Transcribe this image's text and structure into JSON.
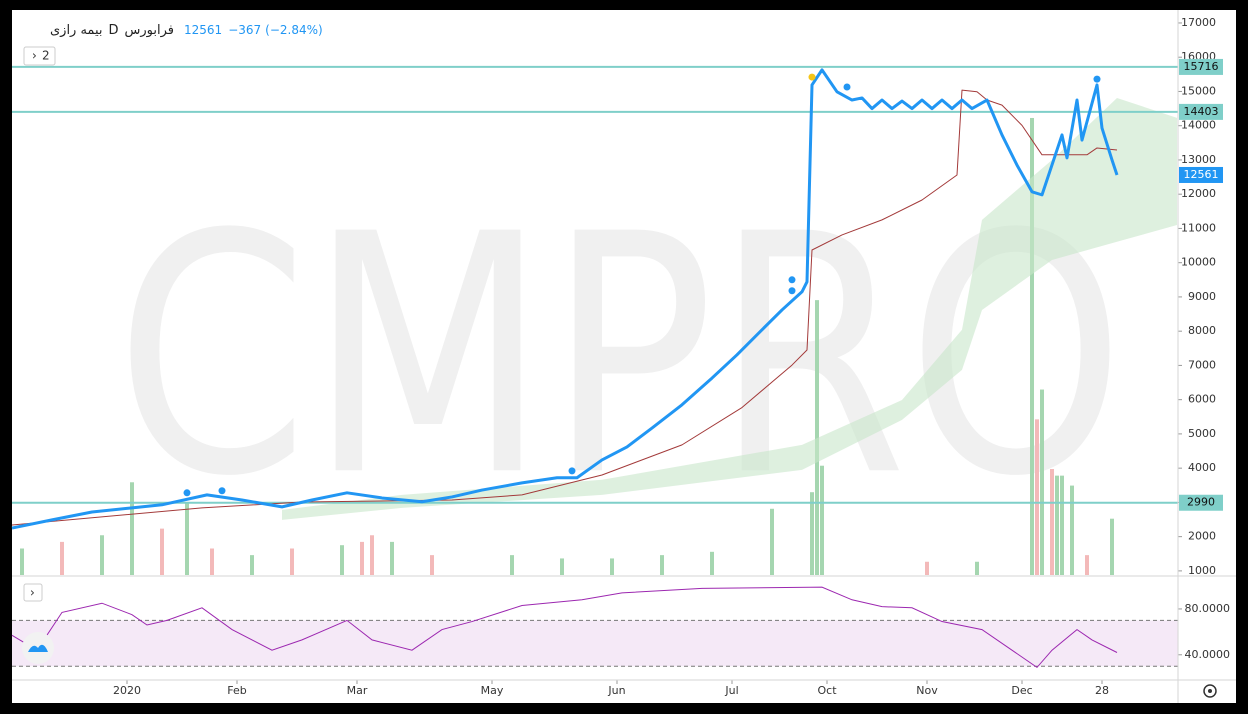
{
  "chart_data": {
    "type": "line",
    "header": {
      "symbol": "بیمه رازی",
      "interval": "D",
      "exchange": "فرابورس",
      "change": "−367",
      "change_pct": "(−2.84%)",
      "indicator_count": "2"
    },
    "watermark": "CMPRO",
    "last": 12561,
    "xlim": [
      0,
      233.2
    ],
    "xticks": [
      {
        "value": 23,
        "label": "2020"
      },
      {
        "value": 45,
        "label": "Feb"
      },
      {
        "value": 69,
        "label": "Mar"
      },
      {
        "value": 96,
        "label": "May"
      },
      {
        "value": 121,
        "label": "Jun"
      },
      {
        "value": 144,
        "label": "Jul"
      },
      {
        "value": 163,
        "label": "Oct"
      },
      {
        "value": 183,
        "label": "Nov"
      },
      {
        "value": 202,
        "label": "Dec"
      },
      {
        "value": 218,
        "label": "28"
      }
    ],
    "ylim": [
      880,
      17320
    ],
    "yticks": [
      1000,
      2000,
      3000,
      4000,
      5000,
      6000,
      7000,
      8000,
      9000,
      10000,
      11000,
      12000,
      13000,
      14000,
      15000,
      16000,
      17000
    ],
    "levels": [
      {
        "value": 15716,
        "color": "#7fcfc9"
      },
      {
        "value": 14403,
        "color": "#7fcfc9"
      },
      {
        "value": 2990,
        "color": "#7fcfc9"
      }
    ],
    "series": [
      {
        "name": "price",
        "color": "#2196f3",
        "x": [
          0,
          8,
          16,
          24,
          30,
          39,
          46,
          54,
          60,
          67,
          74,
          82,
          88,
          94,
          102,
          109,
          113,
          118,
          123,
          128,
          134,
          140,
          145,
          150,
          154,
          158,
          159,
          160,
          162,
          165,
          168,
          170,
          172,
          174,
          176,
          178,
          180,
          182,
          184,
          186,
          188,
          190,
          192,
          195,
          198,
          201,
          204,
          206,
          210,
          211,
          213,
          214,
          217,
          218,
          220,
          221
        ],
        "values": [
          2250,
          2490,
          2720,
          2840,
          2930,
          3220,
          3070,
          2870,
          3070,
          3280,
          3130,
          3020,
          3160,
          3360,
          3570,
          3720,
          3720,
          4240,
          4620,
          5170,
          5850,
          6630,
          7310,
          8040,
          8620,
          9150,
          9440,
          15190,
          15630,
          14990,
          14750,
          14810,
          14500,
          14750,
          14500,
          14720,
          14500,
          14750,
          14500,
          14750,
          14500,
          14750,
          14500,
          14750,
          13730,
          12850,
          12070,
          11980,
          13730,
          13060,
          14750,
          13580,
          15190,
          13930,
          13000,
          12561
        ]
      },
      {
        "name": "ma",
        "color": "#a33a3a",
        "x": [
          0,
          38,
          58,
          88,
          102,
          118,
          134,
          146,
          156,
          159,
          160,
          166,
          174,
          182,
          189,
          190,
          193,
          195,
          198,
          202,
          206,
          215,
          217,
          221
        ],
        "values": [
          2340,
          2840,
          3010,
          3070,
          3220,
          3800,
          4680,
          5770,
          7010,
          7450,
          10370,
          10810,
          11250,
          11830,
          12560,
          15040,
          14990,
          14750,
          14600,
          14010,
          13150,
          13150,
          13350,
          13290
        ]
      }
    ],
    "cloud": {
      "color": "#c8e6c9",
      "x": [
        54,
        78,
        118,
        158,
        178,
        190,
        194,
        208,
        221,
        233
      ],
      "upper": [
        2780,
        3220,
        3660,
        4680,
        5990,
        8040,
        11250,
        13000,
        14810,
        14230
      ],
      "lower": [
        2490,
        2840,
        3220,
        3950,
        5410,
        6870,
        8620,
        10080,
        10610,
        11100
      ]
    },
    "markers": {
      "x": [
        35,
        42,
        112,
        156,
        156,
        167,
        217,
        160
      ],
      "values": [
        3280,
        3340,
        3920,
        9500,
        9180,
        15130,
        15360,
        15420
      ],
      "colors": [
        "#2196f3",
        "#2196f3",
        "#2196f3",
        "#2196f3",
        "#2196f3",
        "#2196f3",
        "#2196f3",
        "#f5c518"
      ]
    },
    "volume": {
      "vlim": [
        0,
        170
      ],
      "x": [
        2,
        10,
        18,
        24,
        30,
        35,
        40,
        48,
        56,
        66,
        70,
        72,
        76,
        84,
        100,
        110,
        120,
        130,
        140,
        152,
        160,
        161,
        162,
        183,
        193,
        204,
        205,
        206,
        208,
        209,
        210,
        212,
        215,
        220
      ],
      "values": [
        8,
        10,
        12,
        28,
        14,
        22,
        8,
        6,
        8,
        9,
        10,
        12,
        10,
        6,
        6,
        5,
        5,
        6,
        7,
        20,
        25,
        83,
        33,
        4,
        4,
        138,
        47,
        56,
        32,
        30,
        30,
        27,
        6,
        17
      ],
      "colors": [
        "#a5d6b0",
        "#f3b9b9",
        "#a5d6b0",
        "#a5d6b0",
        "#f3b9b9",
        "#a5d6b0",
        "#f3b9b9",
        "#a5d6b0",
        "#f3b9b9",
        "#a5d6b0",
        "#f3b9b9",
        "#f3b9b9",
        "#a5d6b0",
        "#f3b9b9",
        "#a5d6b0",
        "#a5d6b0",
        "#a5d6b0",
        "#a5d6b0",
        "#a5d6b0",
        "#a5d6b0",
        "#a5d6b0",
        "#a5d6b0",
        "#a5d6b0",
        "#f3b9b9",
        "#a5d6b0",
        "#a5d6b0",
        "#f3b9b9",
        "#a5d6b0",
        "#f3b9b9",
        "#a5d6b0",
        "#a5d6b0",
        "#a5d6b0",
        "#f3b9b9",
        "#a5d6b0"
      ]
    },
    "rsi": {
      "color": "#9c27b0",
      "ylim": [
        18,
        107
      ],
      "yticks": [
        {
          "value": 80,
          "label": "80.0000"
        },
        {
          "value": 40,
          "label": "40.0000"
        }
      ],
      "band": [
        30,
        70
      ],
      "x": [
        0,
        5,
        10,
        18,
        24,
        27,
        31,
        38,
        44,
        52,
        58,
        67,
        72,
        80,
        86,
        92,
        102,
        114,
        122,
        138,
        162,
        168,
        174,
        180,
        186,
        194,
        200,
        205,
        208,
        213,
        216,
        221
      ],
      "values": [
        57,
        44,
        77,
        85,
        75,
        66,
        70,
        81,
        62,
        44,
        53,
        70,
        53,
        44,
        62,
        69,
        83,
        88,
        94,
        98,
        99,
        88,
        82,
        81,
        69,
        62,
        44,
        29,
        44,
        62,
        53,
        42
      ]
    }
  }
}
